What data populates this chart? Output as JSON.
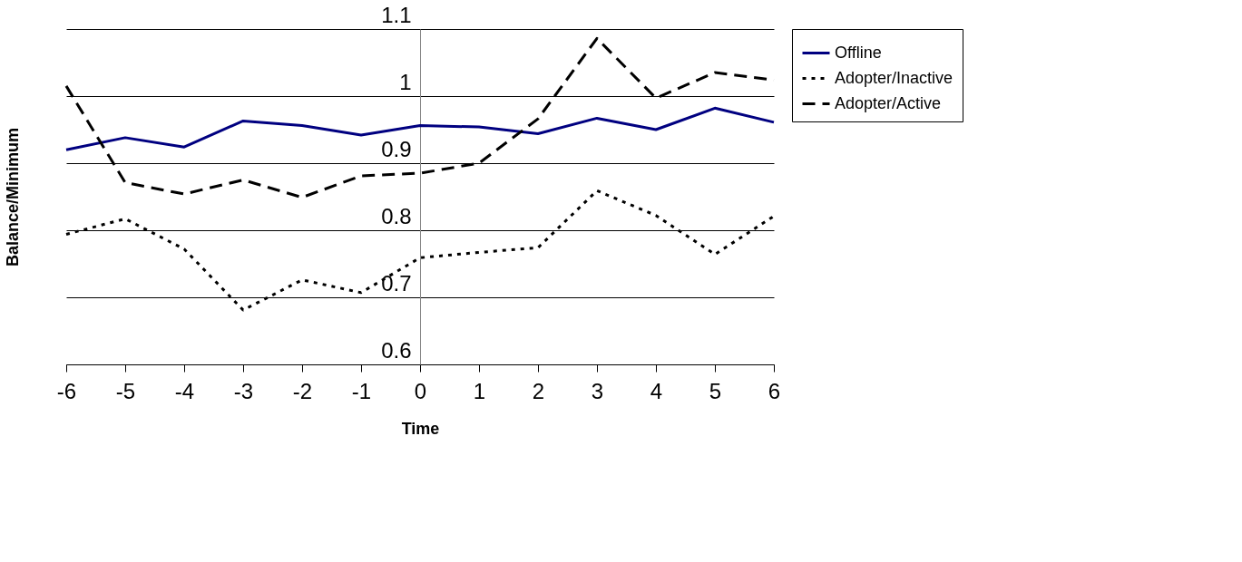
{
  "chart_data": {
    "type": "line",
    "xlabel": "Time",
    "ylabel": "Balance/Minimum",
    "x": [
      -6,
      -5,
      -4,
      -3,
      -2,
      -1,
      0,
      1,
      2,
      3,
      4,
      5,
      6
    ],
    "series": [
      {
        "name": "Offline",
        "color": "#000080",
        "line_style": "solid",
        "values": [
          0.92,
          0.938,
          0.924,
          0.963,
          0.956,
          0.942,
          0.956,
          0.954,
          0.944,
          0.967,
          0.95,
          0.982,
          0.961
        ]
      },
      {
        "name": "Adopter/Inactive",
        "color": "#000000",
        "line_style": "dotted",
        "values": [
          0.794,
          0.817,
          0.772,
          0.681,
          0.726,
          0.707,
          0.759,
          0.767,
          0.774,
          0.859,
          0.822,
          0.764,
          0.821
        ]
      },
      {
        "name": "Adopter/Active",
        "color": "#000000",
        "line_style": "dashed",
        "values": [
          1.015,
          0.871,
          0.854,
          0.875,
          0.849,
          0.881,
          0.885,
          0.9,
          0.966,
          1.086,
          0.997,
          1.035,
          1.024
        ]
      }
    ],
    "xlim": [
      -6,
      6
    ],
    "xticks": [
      -6,
      -5,
      -4,
      -3,
      -2,
      -1,
      0,
      1,
      2,
      3,
      4,
      5,
      6
    ],
    "ylim": [
      0.6,
      1.1
    ],
    "yticks": [
      0.6,
      0.7,
      0.8,
      0.9,
      1,
      1.1
    ],
    "grid": "y",
    "legend": "right",
    "marker": "none"
  }
}
